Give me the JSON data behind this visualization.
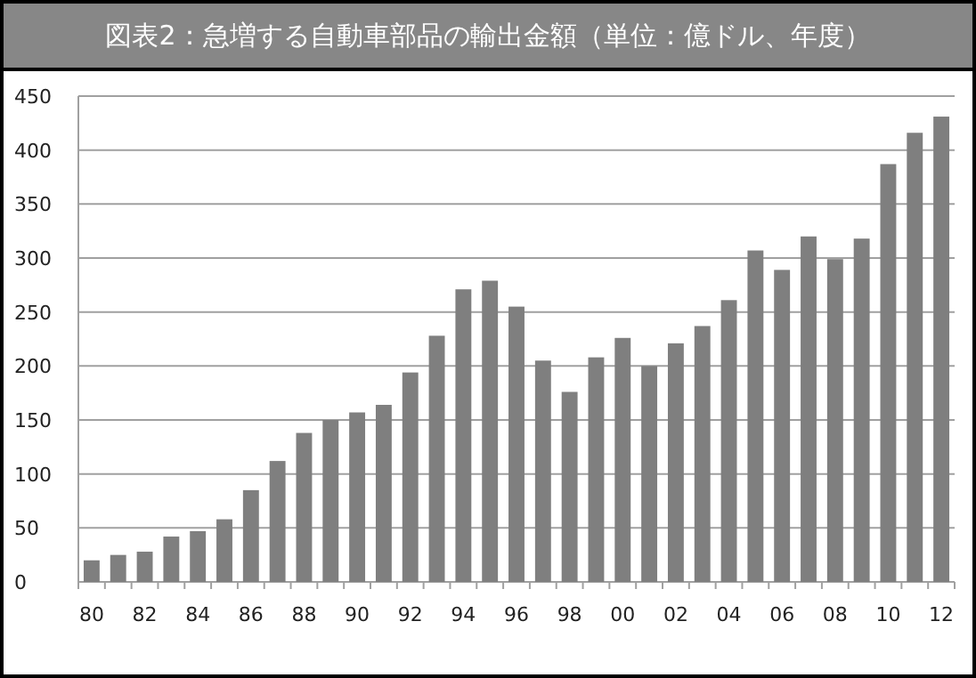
{
  "chart_data": {
    "type": "bar",
    "title": "図表2：急増する自動車部品の輸出金額（単位：億ドル、年度）",
    "categories": [
      "80",
      null,
      "82",
      null,
      "84",
      null,
      "86",
      null,
      "88",
      null,
      "90",
      null,
      "92",
      null,
      "94",
      null,
      "96",
      null,
      "98",
      null,
      "00",
      null,
      "02",
      null,
      "04",
      null,
      "06",
      null,
      "08",
      null,
      "10",
      null,
      "12"
    ],
    "values": [
      20,
      25,
      28,
      42,
      47,
      58,
      85,
      112,
      138,
      150,
      157,
      164,
      194,
      228,
      271,
      279,
      255,
      205,
      176,
      208,
      226,
      200,
      221,
      237,
      261,
      307,
      289,
      320,
      299,
      318,
      387,
      416,
      431
    ],
    "color": "#7f7f7f",
    "ylim": [
      0,
      450
    ],
    "yticks": [
      0,
      50,
      100,
      150,
      200,
      250,
      300,
      350,
      400,
      450
    ],
    "grid": "y"
  }
}
